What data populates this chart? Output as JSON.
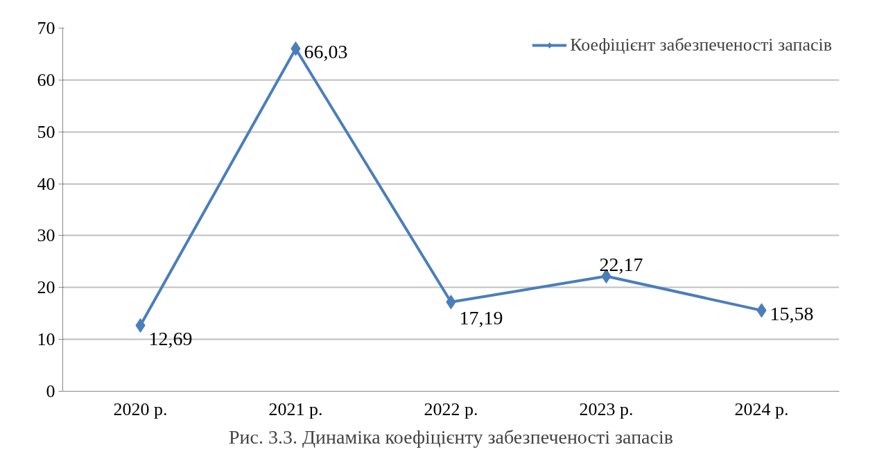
{
  "chart_data": {
    "type": "line",
    "categories": [
      "2020 р.",
      "2021 р.",
      "2022 р.",
      "2023 р.",
      "2024 р."
    ],
    "series": [
      {
        "name": "Коефіцієнт забезпеченості запасів",
        "color": "#4a7ebb",
        "values": [
          12.69,
          66.03,
          17.19,
          22.17,
          15.58
        ],
        "value_labels": [
          "12,69",
          "66,03",
          "17,19",
          "22,17",
          "15,58"
        ]
      }
    ],
    "ylim": [
      0,
      70
    ],
    "yticks": [
      0,
      10,
      20,
      30,
      40,
      50,
      60,
      70
    ],
    "grid": "y",
    "legend": "top right",
    "marker": "diamond",
    "line_style": "solid",
    "annotations": [
      "Рис. 3.3. Динаміка коефіцієнту забезпеченості запасів"
    ]
  }
}
